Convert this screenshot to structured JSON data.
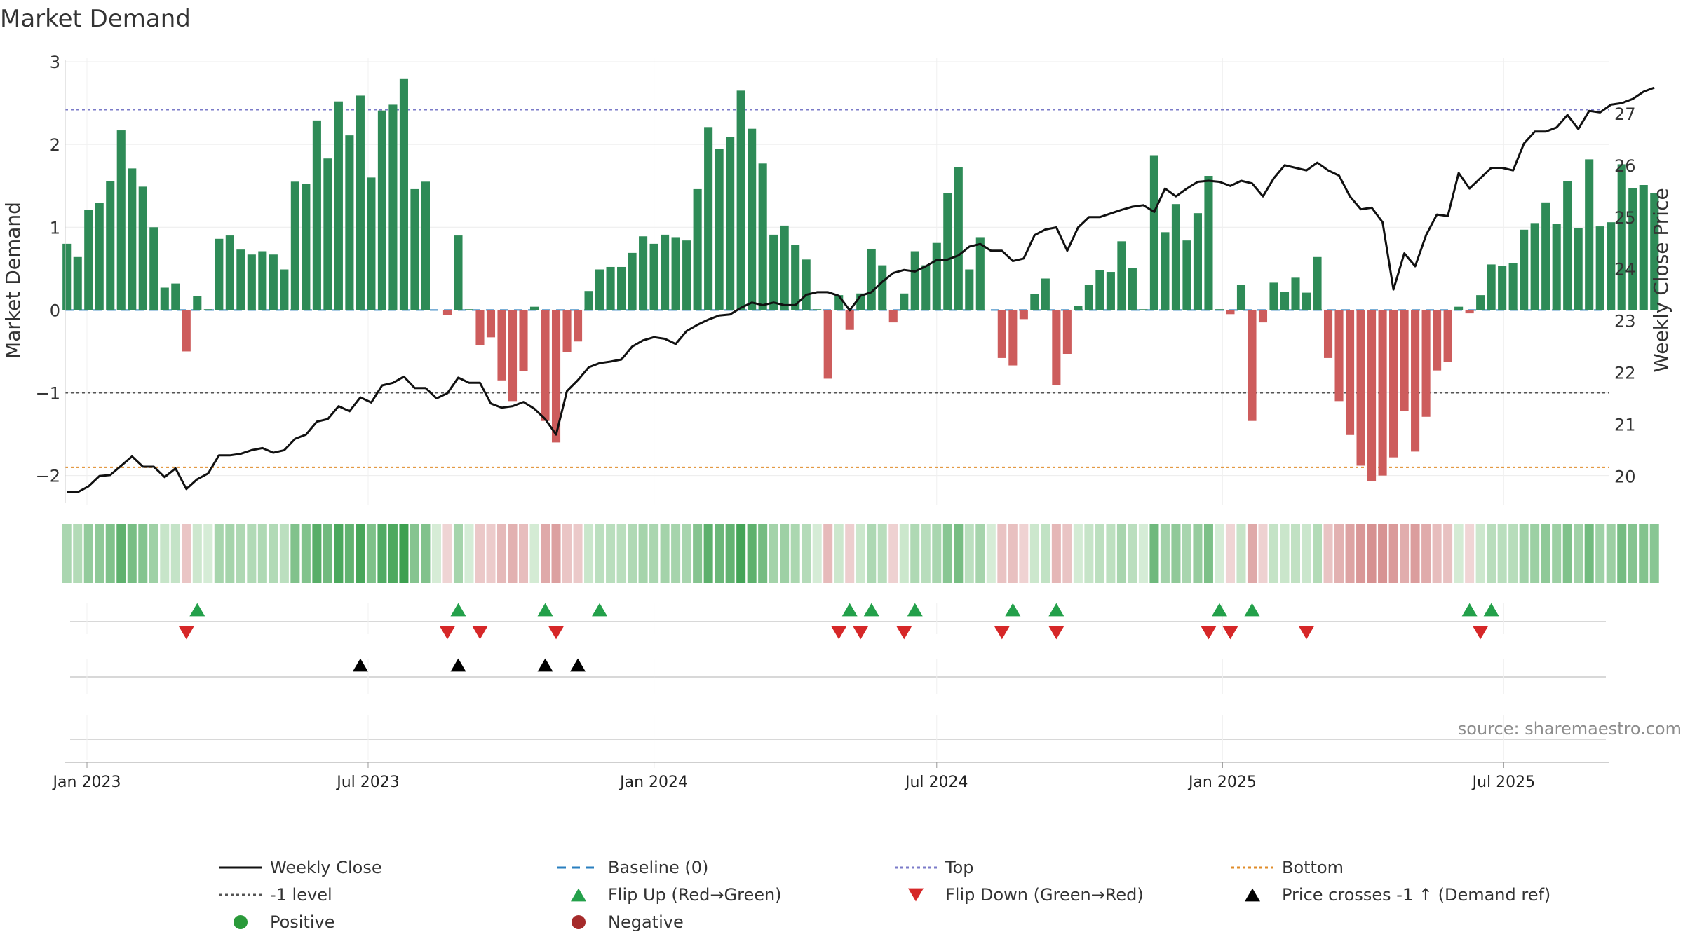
{
  "chart_data": {
    "type": "bar",
    "title": "Market Demand",
    "ylabel": "Market Demand",
    "y2label": "Weekly Close Price",
    "ylim": [
      -2.35,
      3.0
    ],
    "y2lim": [
      19.45,
      28.0
    ],
    "yticks": [
      3,
      2,
      1,
      0,
      -1,
      -2
    ],
    "ytick_labels": [
      "3",
      "2",
      "1",
      "0",
      "−1",
      "−2"
    ],
    "y2ticks": [
      27,
      26,
      25,
      24,
      23,
      22,
      21,
      20
    ],
    "y2tick_labels": [
      "27",
      "26",
      "25",
      "24",
      "23",
      "22",
      "21",
      "20"
    ],
    "xlim": [
      "2022-12-18",
      "2025-09-07"
    ],
    "xticks": [
      {
        "date": "2023-01-01",
        "label": "Jan 2023"
      },
      {
        "date": "2023-07-01",
        "label": "Jul 2023"
      },
      {
        "date": "2024-01-01",
        "label": "Jan 2024"
      },
      {
        "date": "2024-07-01",
        "label": "Jul 2024"
      },
      {
        "date": "2025-01-01",
        "label": "Jan 2025"
      },
      {
        "date": "2025-07-01",
        "label": "Jul 2025"
      }
    ],
    "start_date": "2022-12-19",
    "week_interval_days": 7,
    "demand": [
      0.8,
      0.64,
      1.21,
      1.29,
      1.56,
      2.17,
      1.71,
      1.49,
      1.0,
      0.27,
      0.32,
      -0.5,
      0.17,
      0.01,
      0.86,
      0.9,
      0.73,
      0.67,
      0.71,
      0.67,
      0.49,
      1.55,
      1.52,
      2.29,
      1.83,
      2.52,
      2.11,
      2.59,
      1.6,
      2.41,
      2.48,
      2.79,
      1.46,
      1.55,
      0.0,
      -0.06,
      0.9,
      0.01,
      -0.42,
      -0.33,
      -0.85,
      -1.1,
      -0.74,
      0.04,
      -1.34,
      -1.6,
      -0.51,
      -0.38,
      0.23,
      0.49,
      0.52,
      0.52,
      0.69,
      0.89,
      0.8,
      0.91,
      0.88,
      0.84,
      1.46,
      2.21,
      1.95,
      2.09,
      2.65,
      2.19,
      1.77,
      0.91,
      1.02,
      0.79,
      0.61,
      0.01,
      -0.83,
      0.18,
      -0.24,
      0.2,
      0.74,
      0.54,
      -0.15,
      0.2,
      0.71,
      0.54,
      0.81,
      1.41,
      1.73,
      0.49,
      0.88,
      0.0,
      -0.58,
      -0.67,
      -0.11,
      0.19,
      0.38,
      -0.91,
      -0.53,
      0.05,
      0.3,
      0.48,
      0.46,
      0.83,
      0.51,
      0.01,
      1.87,
      0.94,
      1.28,
      0.84,
      1.17,
      1.62,
      0.01,
      -0.05,
      0.3,
      -1.34,
      -0.15,
      0.33,
      0.22,
      0.39,
      0.21,
      0.64,
      -0.58,
      -1.1,
      -1.51,
      -1.88,
      -2.07,
      -2.0,
      -1.78,
      -1.22,
      -1.71,
      -1.29,
      -0.73,
      -0.63,
      0.04,
      -0.04,
      0.18,
      0.55,
      0.53,
      0.57,
      0.97,
      1.05,
      1.3,
      1.04,
      1.56,
      0.99,
      1.82,
      1.01,
      1.06,
      1.76,
      1.47,
      1.51,
      1.41
    ],
    "close": [
      19.7,
      19.69,
      19.8,
      20.0,
      20.02,
      20.2,
      20.38,
      20.18,
      20.18,
      19.98,
      20.15,
      19.75,
      19.94,
      20.05,
      20.4,
      20.4,
      20.43,
      20.5,
      20.54,
      20.45,
      20.5,
      20.72,
      20.8,
      21.05,
      21.1,
      21.35,
      21.25,
      21.52,
      21.42,
      21.75,
      21.8,
      21.92,
      21.7,
      21.7,
      21.5,
      21.6,
      21.9,
      21.8,
      21.8,
      21.4,
      21.32,
      21.35,
      21.43,
      21.3,
      21.1,
      20.8,
      21.64,
      21.85,
      22.1,
      22.18,
      22.21,
      22.25,
      22.5,
      22.62,
      22.68,
      22.65,
      22.55,
      22.8,
      22.92,
      23.02,
      23.1,
      23.12,
      23.25,
      23.35,
      23.3,
      23.35,
      23.3,
      23.3,
      23.5,
      23.55,
      23.55,
      23.48,
      23.2,
      23.48,
      23.55,
      23.75,
      23.92,
      23.98,
      23.95,
      24.05,
      24.17,
      24.18,
      24.26,
      24.43,
      24.48,
      24.35,
      24.35,
      24.15,
      24.2,
      24.65,
      24.76,
      24.8,
      24.35,
      24.8,
      25.0,
      25.0,
      25.07,
      25.14,
      25.2,
      25.23,
      25.1,
      25.55,
      25.4,
      25.55,
      25.68,
      25.7,
      25.68,
      25.6,
      25.7,
      25.65,
      25.4,
      25.75,
      26.0,
      25.95,
      25.9,
      26.05,
      25.9,
      25.8,
      25.4,
      25.15,
      25.18,
      24.9,
      23.6,
      24.3,
      24.05,
      24.65,
      25.05,
      25.02,
      25.85,
      25.55,
      25.75,
      25.95,
      25.95,
      25.9,
      26.42,
      26.65,
      26.65,
      26.73,
      26.97,
      26.7,
      27.05,
      27.02,
      27.17,
      27.2,
      27.28,
      27.42,
      27.5
    ],
    "reference_lines": [
      {
        "name": "Top",
        "value": 2.42,
        "color": "#7b7bc9",
        "dash": "4 4"
      },
      {
        "name": "-1 level",
        "value": -1.0,
        "color": "#555555",
        "dash": "4 4"
      },
      {
        "name": "Bottom",
        "value": -1.9,
        "color": "#e08c2a",
        "dash": "4 4"
      },
      {
        "name": "Baseline (0)",
        "value": 0.0,
        "color": "#2a7fbf",
        "dash": "12 8"
      }
    ],
    "flip_up_dates": [
      "2023-03-13",
      "2023-08-28",
      "2023-10-23",
      "2023-11-27",
      "2024-05-06",
      "2024-05-20",
      "2024-06-17",
      "2024-08-19",
      "2024-09-16",
      "2024-12-30",
      "2025-01-20",
      "2025-06-09",
      "2025-06-23"
    ],
    "flip_down_dates": [
      "2023-03-06",
      "2023-08-21",
      "2023-09-11",
      "2023-10-30",
      "2024-04-29",
      "2024-05-13",
      "2024-06-10",
      "2024-08-12",
      "2024-09-16",
      "2024-12-23",
      "2025-01-06",
      "2025-02-24",
      "2025-06-16"
    ],
    "price_cross_dates": [
      "2023-06-26",
      "2023-08-28",
      "2023-10-23",
      "2023-11-13"
    ],
    "source_text": "source: sharemaestro.com",
    "colors": {
      "positive_bar": "#2e8b57",
      "negative_bar": "#cd5c5c",
      "close_line": "#111111",
      "flip_up": "#23a04a",
      "flip_down": "#d62728",
      "price_cross": "#000000",
      "positive_dot": "#2a9a3a",
      "negative_dot": "#a52a2a"
    },
    "legend": {
      "position": "bottom",
      "items": [
        {
          "label": "Weekly Close",
          "kind": "line",
          "color": "#111111",
          "dash": ""
        },
        {
          "label": "Baseline (0)",
          "kind": "line",
          "color": "#2a7fbf",
          "dash": "12 8"
        },
        {
          "label": "Top",
          "kind": "line",
          "color": "#7b7bc9",
          "dash": "4 4"
        },
        {
          "label": "Bottom",
          "kind": "line",
          "color": "#e08c2a",
          "dash": "4 4"
        },
        {
          "label": "-1 level",
          "kind": "line",
          "color": "#555555",
          "dash": "4 4"
        },
        {
          "label": "Flip Up (Red→Green)",
          "kind": "tri-up",
          "color": "#23a04a"
        },
        {
          "label": "Flip Down (Green→Red)",
          "kind": "tri-down",
          "color": "#d62728"
        },
        {
          "label": "Price crosses -1 ↑ (Demand ref)",
          "kind": "tri-up",
          "color": "#000000"
        },
        {
          "label": "Positive",
          "kind": "dot",
          "color": "#2a9a3a"
        },
        {
          "label": "Negative",
          "kind": "dot",
          "color": "#a52a2a"
        }
      ]
    }
  }
}
